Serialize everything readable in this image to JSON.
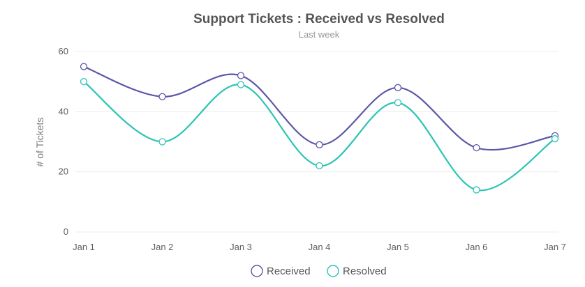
{
  "chart_data": {
    "type": "line",
    "title": "Support Tickets : Received vs Resolved",
    "subtitle": "Last week",
    "xlabel": "",
    "ylabel": "# of Tickets",
    "categories": [
      "Jan 1",
      "Jan 2",
      "Jan 3",
      "Jan 4",
      "Jan 5",
      "Jan 6",
      "Jan 7"
    ],
    "ylim": [
      0,
      60
    ],
    "yticks": [
      "0",
      "20",
      "40",
      "60"
    ],
    "grid": true,
    "smooth": true,
    "legend": "bottom-center",
    "series": [
      {
        "name": "Received",
        "color": "#5b57a8",
        "values": [
          55,
          45,
          52,
          29,
          48,
          28,
          32
        ]
      },
      {
        "name": "Resolved",
        "color": "#2ec4b6",
        "values": [
          50,
          30,
          49,
          22,
          43,
          14,
          31
        ]
      }
    ]
  }
}
